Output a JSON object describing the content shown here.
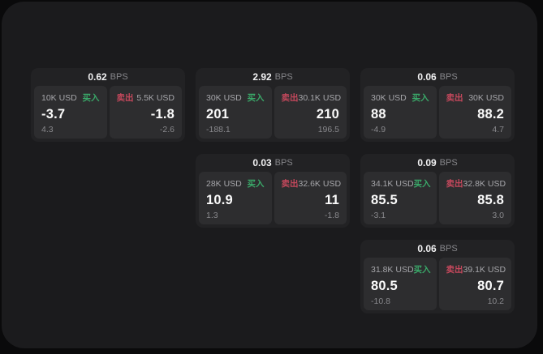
{
  "page": {
    "background": "#0a0a0b",
    "panel_background": "#1b1b1d",
    "card_background": "#222224",
    "tile_background": "#2d2d2f"
  },
  "labels": {
    "bps": "BPS",
    "buy": "买入",
    "sell": "卖出"
  },
  "colors": {
    "buy": "#3aa869",
    "sell": "#c4485c",
    "value_text": "#fafafa",
    "muted_text": "#88888c"
  },
  "cards": [
    {
      "bps": "0.62",
      "col": 1,
      "row": 1,
      "buy": {
        "amount": "10K USD",
        "value": "-3.7",
        "sub": "4.3"
      },
      "sell": {
        "amount": "5.5K USD",
        "value": "-1.8",
        "sub": "-2.6"
      }
    },
    {
      "bps": "2.92",
      "col": 2,
      "row": 1,
      "buy": {
        "amount": "30K USD",
        "value": "201",
        "sub": "-188.1"
      },
      "sell": {
        "amount": "30.1K USD",
        "value": "210",
        "sub": "196.5"
      }
    },
    {
      "bps": "0.06",
      "col": 3,
      "row": 1,
      "buy": {
        "amount": "30K USD",
        "value": "88",
        "sub": "-4.9"
      },
      "sell": {
        "amount": "30K USD",
        "value": "88.2",
        "sub": "4.7"
      }
    },
    {
      "bps": "0.03",
      "col": 2,
      "row": 2,
      "buy": {
        "amount": "28K USD",
        "value": "10.9",
        "sub": "1.3"
      },
      "sell": {
        "amount": "32.6K USD",
        "value": "11",
        "sub": "-1.8"
      }
    },
    {
      "bps": "0.09",
      "col": 3,
      "row": 2,
      "buy": {
        "amount": "34.1K USD",
        "value": "85.5",
        "sub": "-3.1"
      },
      "sell": {
        "amount": "32.8K USD",
        "value": "85.8",
        "sub": "3.0"
      }
    },
    {
      "bps": "0.06",
      "col": 3,
      "row": 3,
      "buy": {
        "amount": "31.8K USD",
        "value": "80.5",
        "sub": "-10.8"
      },
      "sell": {
        "amount": "39.1K USD",
        "value": "80.7",
        "sub": "10.2"
      }
    }
  ]
}
